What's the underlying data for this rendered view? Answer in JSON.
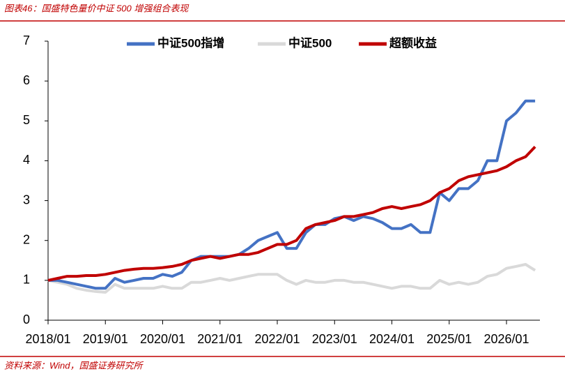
{
  "title": "图表46：国盛特色量价中证 500 增强组合表现",
  "source": "资料来源：Wind，国盛证券研究所",
  "chart_data": {
    "type": "line",
    "x": [
      "2018/01",
      "2018/03",
      "2018/05",
      "2018/07",
      "2018/09",
      "2018/11",
      "2019/01",
      "2019/03",
      "2019/05",
      "2019/07",
      "2019/09",
      "2019/11",
      "2020/01",
      "2020/03",
      "2020/05",
      "2020/07",
      "2020/09",
      "2020/11",
      "2021/01",
      "2021/03",
      "2021/05",
      "2021/07",
      "2021/09",
      "2021/11",
      "2022/01",
      "2022/03",
      "2022/05",
      "2022/07",
      "2022/09",
      "2022/11",
      "2023/01",
      "2023/03",
      "2023/05",
      "2023/07",
      "2023/09",
      "2023/11",
      "2024/01",
      "2024/03",
      "2024/05",
      "2024/07",
      "2024/09",
      "2024/11",
      "2025/01",
      "2025/03",
      "2025/05",
      "2025/07",
      "2025/09",
      "2025/11",
      "2026/01",
      "2026/03",
      "2026/05",
      "2026/07"
    ],
    "series": [
      {
        "name": "中证500指增",
        "color": "#4472c4",
        "values": [
          1.0,
          1.0,
          0.95,
          0.9,
          0.85,
          0.8,
          0.8,
          1.05,
          0.95,
          1.0,
          1.05,
          1.05,
          1.15,
          1.1,
          1.2,
          1.5,
          1.6,
          1.6,
          1.6,
          1.6,
          1.65,
          1.8,
          2.0,
          2.1,
          2.2,
          1.8,
          1.8,
          2.2,
          2.4,
          2.4,
          2.55,
          2.6,
          2.5,
          2.6,
          2.55,
          2.45,
          2.3,
          2.3,
          2.4,
          2.2,
          2.2,
          3.2,
          3.0,
          3.3,
          3.3,
          3.5,
          4.0,
          4.0,
          5.0,
          5.2,
          5.5,
          5.5
        ]
      },
      {
        "name": "中证500",
        "color": "#d9d9d9",
        "values": [
          1.0,
          0.95,
          0.9,
          0.8,
          0.75,
          0.72,
          0.7,
          0.9,
          0.8,
          0.8,
          0.8,
          0.8,
          0.85,
          0.8,
          0.8,
          0.95,
          0.95,
          1.0,
          1.05,
          1.0,
          1.05,
          1.1,
          1.15,
          1.15,
          1.15,
          1.0,
          0.9,
          1.0,
          0.95,
          0.95,
          1.0,
          1.0,
          0.95,
          0.95,
          0.9,
          0.85,
          0.8,
          0.85,
          0.85,
          0.8,
          0.8,
          1.0,
          0.9,
          0.95,
          0.9,
          0.95,
          1.1,
          1.15,
          1.3,
          1.35,
          1.4,
          1.25
        ]
      },
      {
        "name": "超额收益",
        "color": "#c00000",
        "values": [
          1.0,
          1.05,
          1.1,
          1.1,
          1.12,
          1.12,
          1.15,
          1.2,
          1.25,
          1.28,
          1.3,
          1.3,
          1.32,
          1.35,
          1.4,
          1.5,
          1.55,
          1.6,
          1.55,
          1.6,
          1.65,
          1.65,
          1.7,
          1.8,
          1.9,
          1.9,
          2.0,
          2.3,
          2.4,
          2.45,
          2.5,
          2.6,
          2.6,
          2.65,
          2.7,
          2.8,
          2.85,
          2.8,
          2.85,
          2.9,
          3.0,
          3.2,
          3.3,
          3.5,
          3.6,
          3.65,
          3.7,
          3.75,
          3.85,
          4.0,
          4.1,
          4.35
        ]
      }
    ],
    "xlim": [
      "2018/01",
      "2026/08"
    ],
    "xticks": [
      "2018/01",
      "2019/01",
      "2020/01",
      "2021/01",
      "2022/01",
      "2023/01",
      "2024/01",
      "2025/01",
      "2026/01"
    ],
    "ylim": [
      0,
      7
    ],
    "yticks": [
      0,
      1,
      2,
      3,
      4,
      5,
      6,
      7
    ],
    "legend": "top",
    "grid": false
  }
}
